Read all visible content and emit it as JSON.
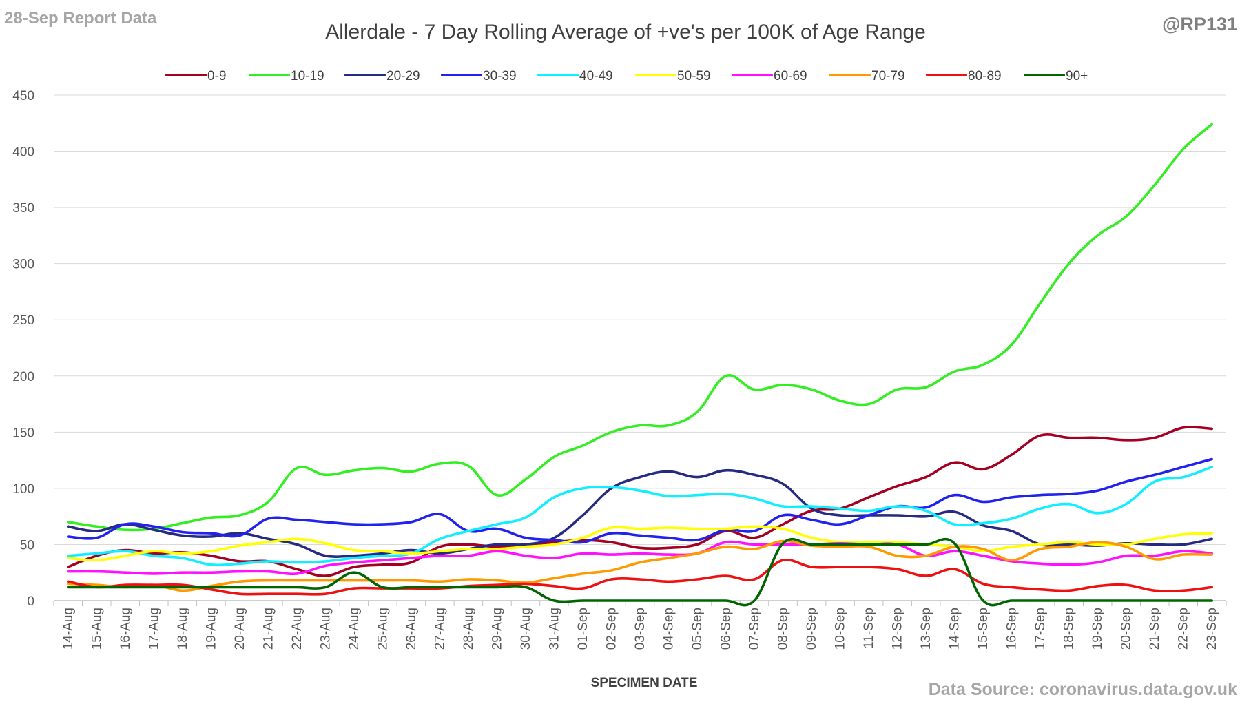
{
  "report_label": "28-Sep Report Data",
  "handle": "@RP131",
  "source": "Data Source: coronavirus.data.gov.uk",
  "chart_data": {
    "type": "line",
    "title": "Allerdale - 7 Day Rolling Average of +ve's per 100K of Age Range",
    "xlabel": "SPECIMEN DATE",
    "ylabel": "",
    "ylim": [
      0,
      450
    ],
    "yticks": [
      0,
      50,
      100,
      150,
      200,
      250,
      300,
      350,
      400,
      450
    ],
    "grid": true,
    "legend_position": "top",
    "categories": [
      "14-Aug",
      "15-Aug",
      "16-Aug",
      "17-Aug",
      "18-Aug",
      "19-Aug",
      "20-Aug",
      "21-Aug",
      "22-Aug",
      "23-Aug",
      "24-Aug",
      "25-Aug",
      "26-Aug",
      "27-Aug",
      "28-Aug",
      "29-Aug",
      "30-Aug",
      "31-Aug",
      "01-Sep",
      "02-Sep",
      "03-Sep",
      "04-Sep",
      "05-Sep",
      "06-Sep",
      "07-Sep",
      "08-Sep",
      "09-Sep",
      "10-Sep",
      "11-Sep",
      "12-Sep",
      "13-Sep",
      "14-Sep",
      "15-Sep",
      "16-Sep",
      "17-Sep",
      "18-Sep",
      "19-Sep",
      "20-Sep",
      "21-Sep",
      "22-Sep",
      "23-Sep"
    ],
    "series": [
      {
        "name": "0-9",
        "color": "#a50021",
        "values": [
          30,
          40,
          45,
          42,
          43,
          40,
          35,
          35,
          28,
          22,
          30,
          32,
          34,
          48,
          50,
          48,
          50,
          52,
          54,
          52,
          47,
          47,
          50,
          62,
          56,
          68,
          80,
          82,
          92,
          102,
          110,
          123,
          117,
          130,
          147,
          145,
          145,
          143,
          145,
          154,
          153
        ]
      },
      {
        "name": "10-19",
        "color": "#33ee22",
        "values": [
          70,
          66,
          63,
          64,
          69,
          74,
          76,
          88,
          118,
          112,
          116,
          118,
          115,
          122,
          120,
          94,
          108,
          128,
          138,
          150,
          156,
          156,
          168,
          200,
          188,
          192,
          188,
          178,
          175,
          188,
          190,
          204,
          210,
          228,
          265,
          300,
          325,
          342,
          370,
          402,
          424
        ]
      },
      {
        "name": "20-29",
        "color": "#262a80",
        "values": [
          66,
          62,
          68,
          63,
          58,
          57,
          60,
          55,
          50,
          40,
          40,
          42,
          45,
          42,
          46,
          50,
          50,
          56,
          76,
          100,
          110,
          115,
          110,
          116,
          112,
          104,
          82,
          76,
          76,
          76,
          75,
          79,
          67,
          62,
          50,
          50,
          49,
          51,
          50,
          50,
          55
        ]
      },
      {
        "name": "30-39",
        "color": "#2222ee",
        "values": [
          57,
          56,
          68,
          66,
          61,
          60,
          58,
          73,
          72,
          70,
          68,
          68,
          70,
          77,
          62,
          64,
          56,
          54,
          52,
          60,
          58,
          56,
          54,
          63,
          62,
          76,
          72,
          68,
          76,
          84,
          83,
          94,
          88,
          92,
          94,
          95,
          98,
          106,
          112,
          119,
          126
        ]
      },
      {
        "name": "40-49",
        "color": "#11eeff",
        "values": [
          40,
          42,
          44,
          40,
          38,
          32,
          33,
          35,
          34,
          35,
          38,
          40,
          42,
          55,
          62,
          68,
          74,
          92,
          100,
          101,
          98,
          93,
          94,
          95,
          91,
          84,
          84,
          82,
          80,
          84,
          80,
          68,
          69,
          73,
          82,
          86,
          78,
          86,
          106,
          110,
          119
        ]
      },
      {
        "name": "50-59",
        "color": "#ffff00",
        "values": [
          38,
          36,
          40,
          44,
          42,
          44,
          49,
          52,
          55,
          51,
          45,
          44,
          42,
          44,
          46,
          46,
          48,
          50,
          56,
          65,
          64,
          65,
          64,
          64,
          66,
          64,
          56,
          52,
          52,
          52,
          50,
          48,
          44,
          48,
          50,
          52,
          50,
          50,
          55,
          59,
          60
        ]
      },
      {
        "name": "60-69",
        "color": "#ff11ff",
        "values": [
          26,
          26,
          25,
          24,
          25,
          25,
          26,
          26,
          24,
          31,
          34,
          36,
          38,
          40,
          40,
          44,
          40,
          38,
          42,
          41,
          42,
          41,
          42,
          52,
          50,
          50,
          50,
          51,
          50,
          50,
          40,
          44,
          40,
          35,
          33,
          32,
          34,
          40,
          40,
          44,
          42
        ]
      },
      {
        "name": "70-79",
        "color": "#ff9900",
        "values": [
          15,
          14,
          12,
          14,
          9,
          13,
          17,
          18,
          18,
          18,
          18,
          18,
          18,
          17,
          19,
          18,
          16,
          20,
          24,
          27,
          34,
          38,
          42,
          48,
          46,
          53,
          49,
          48,
          48,
          40,
          40,
          48,
          46,
          36,
          46,
          48,
          52,
          48,
          37,
          41,
          41
        ]
      },
      {
        "name": "80-89",
        "color": "#ee1111",
        "values": [
          17,
          12,
          14,
          14,
          14,
          10,
          6,
          6,
          6,
          6,
          11,
          11,
          11,
          11,
          13,
          14,
          15,
          13,
          11,
          19,
          19,
          17,
          19,
          22,
          19,
          36,
          30,
          30,
          30,
          28,
          22,
          28,
          15,
          12,
          10,
          9,
          13,
          14,
          9,
          9,
          12
        ]
      },
      {
        "name": "90+",
        "color": "#006600",
        "values": [
          12,
          12,
          12,
          12,
          12,
          12,
          12,
          12,
          12,
          12,
          25,
          12,
          12,
          12,
          12,
          12,
          12,
          0,
          0,
          0,
          0,
          0,
          0,
          0,
          0,
          51,
          50,
          50,
          50,
          50,
          50,
          51,
          0,
          0,
          0,
          0,
          0,
          0,
          0,
          0,
          0
        ]
      }
    ]
  }
}
